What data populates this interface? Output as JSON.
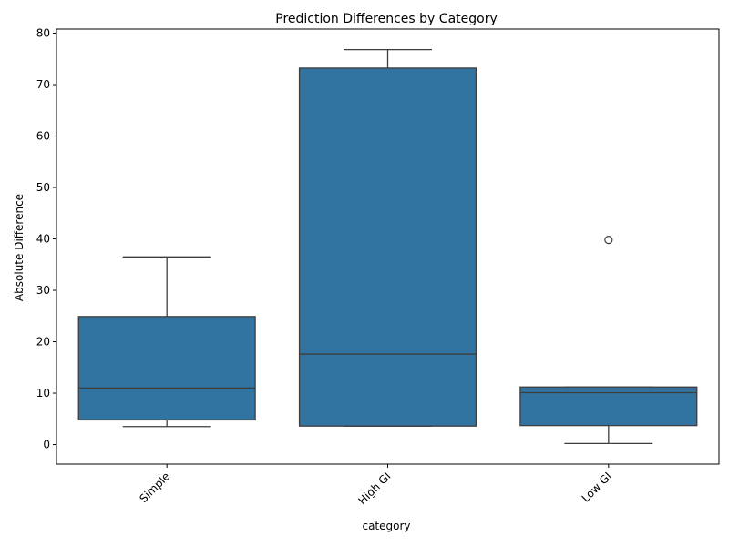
{
  "chart_data": {
    "type": "box",
    "title": "Prediction Differences by Category",
    "xlabel": "category",
    "ylabel": "Absolute Difference",
    "ylim": [
      -3.8,
      80.8
    ],
    "yticks": [
      0,
      10,
      20,
      30,
      40,
      50,
      60,
      70,
      80
    ],
    "grid": false,
    "categories": [
      "Simple",
      "High GI",
      "Low GI"
    ],
    "boxes": [
      {
        "category": "Simple",
        "whisker_low": 3.5,
        "q1": 4.8,
        "median": 11.0,
        "q3": 24.9,
        "whisker_high": 36.5,
        "outliers": []
      },
      {
        "category": "High GI",
        "whisker_low": 3.6,
        "q1": 3.6,
        "median": 17.6,
        "q3": 73.2,
        "whisker_high": 76.8,
        "outliers": []
      },
      {
        "category": "Low GI",
        "whisker_low": 0.2,
        "q1": 3.7,
        "median": 10.1,
        "q3": 11.2,
        "whisker_high": 11.2,
        "outliers": [
          39.8
        ]
      }
    ],
    "colors": {
      "box_fill": "#3274a1",
      "line": "#3d3d3d",
      "axis": "#000000"
    }
  }
}
